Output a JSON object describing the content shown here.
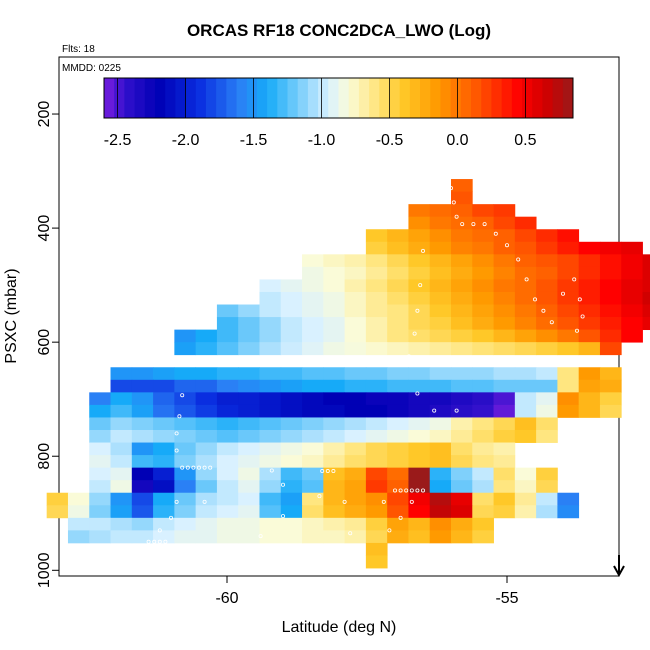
{
  "chart_data": {
    "type": "heatmap",
    "title": "ORCAS RF18 CONC2DCA_LWO (Log)",
    "subtitle_flts": "Flts: 18",
    "subtitle_mmdd": "MMDD: 0225",
    "xlabel": "Latitude (deg N)",
    "ylabel": "PSXC (mbar)",
    "xlim": [
      -63.0,
      -53.0
    ],
    "ylim": [
      1010,
      100
    ],
    "y_reversed": true,
    "x_ticks": [
      -60,
      -55
    ],
    "x_tick_labels": [
      "-60",
      "-55"
    ],
    "y_ticks": [
      200,
      400,
      600,
      800,
      1000
    ],
    "y_tick_labels": [
      "200",
      "400",
      "600",
      "800",
      "1000"
    ],
    "colorbar": {
      "range": [
        -2.6,
        0.85
      ],
      "ticks": [
        -2.5,
        -2.0,
        -1.5,
        -1.0,
        -0.5,
        0.0,
        0.5
      ],
      "tick_labels": [
        "-2.5",
        "-2.0",
        "-1.5",
        "-1.0",
        "-0.5",
        "0.0",
        "0.5"
      ],
      "stops": [
        {
          "v": -2.6,
          "c": "#7a1fe0"
        },
        {
          "v": -2.45,
          "c": "#3311cc"
        },
        {
          "v": -2.2,
          "c": "#0000b5"
        },
        {
          "v": -1.9,
          "c": "#0a2ee0"
        },
        {
          "v": -1.6,
          "c": "#2a80f5"
        },
        {
          "v": -1.4,
          "c": "#16aaf8"
        },
        {
          "v": -1.15,
          "c": "#7fd0fb"
        },
        {
          "v": -0.95,
          "c": "#d9f1ff"
        },
        {
          "v": -0.8,
          "c": "#fafbd8"
        },
        {
          "v": -0.6,
          "c": "#ffe680"
        },
        {
          "v": -0.4,
          "c": "#ffc828"
        },
        {
          "v": -0.15,
          "c": "#ff9a00"
        },
        {
          "v": 0.15,
          "c": "#ff5500"
        },
        {
          "v": 0.45,
          "c": "#ff0000"
        },
        {
          "v": 0.65,
          "c": "#d00000"
        },
        {
          "v": 0.85,
          "c": "#9a1a1a"
        }
      ]
    },
    "cell_size": {
      "dlat": 0.38,
      "dp": 22
    },
    "rows": [
      {
        "p": 325,
        "lat0": -56.0,
        "values": [
          0.1
        ]
      },
      {
        "p": 347,
        "lat0": -56.0,
        "values": [
          0.15
        ]
      },
      {
        "p": 369,
        "lat0": -56.76,
        "values": [
          0.0,
          0.05,
          0.1,
          0.2,
          0.25
        ]
      },
      {
        "p": 391,
        "lat0": -56.76,
        "values": [
          -0.1,
          0.0,
          0.05,
          0.1,
          0.2,
          0.3
        ]
      },
      {
        "p": 413,
        "lat0": -57.52,
        "values": [
          -0.4,
          -0.3,
          -0.2,
          -0.1,
          0.0,
          0.05,
          0.1,
          0.2,
          0.3,
          0.4
        ]
      },
      {
        "p": 435,
        "lat0": -57.52,
        "values": [
          -0.45,
          -0.35,
          -0.25,
          -0.15,
          -0.05,
          0.0,
          0.1,
          0.15,
          0.25,
          0.35,
          0.45,
          0.5,
          0.55
        ]
      },
      {
        "p": 457,
        "lat0": -58.66,
        "values": [
          -0.8,
          -0.75,
          -0.7,
          -0.6,
          -0.5,
          -0.4,
          -0.3,
          -0.2,
          -0.1,
          0.0,
          0.1,
          0.15,
          0.2,
          0.3,
          0.4,
          0.5,
          0.6
        ]
      },
      {
        "p": 479,
        "lat0": -58.66,
        "values": [
          -0.85,
          -0.8,
          -0.75,
          -0.65,
          -0.55,
          -0.45,
          -0.35,
          -0.25,
          -0.15,
          -0.05,
          0.05,
          0.1,
          0.2,
          0.3,
          0.4,
          0.5,
          0.6
        ]
      },
      {
        "p": 501,
        "lat0": -59.42,
        "values": [
          -0.95,
          -0.9,
          -0.85,
          -0.8,
          -0.7,
          -0.6,
          -0.5,
          -0.4,
          -0.3,
          -0.2,
          -0.1,
          0.0,
          0.05,
          0.15,
          0.25,
          0.35,
          0.45,
          0.55,
          0.6
        ]
      },
      {
        "p": 523,
        "lat0": -59.42,
        "values": [
          -1.0,
          -0.95,
          -0.9,
          -0.85,
          -0.75,
          -0.65,
          -0.55,
          -0.45,
          -0.35,
          -0.25,
          -0.15,
          -0.05,
          0.05,
          0.15,
          0.25,
          0.35,
          0.45,
          0.55,
          0.65
        ]
      },
      {
        "p": 545,
        "lat0": -60.18,
        "values": [
          -1.2,
          -1.1,
          -1.0,
          -0.95,
          -0.9,
          -0.85,
          -0.75,
          -0.65,
          -0.6,
          -0.5,
          -0.4,
          -0.3,
          -0.2,
          -0.1,
          0.0,
          0.1,
          0.2,
          0.3,
          0.4,
          0.5,
          0.6
        ]
      },
      {
        "p": 567,
        "lat0": -60.18,
        "values": [
          -1.3,
          -1.2,
          -1.1,
          -1.0,
          -0.95,
          -0.9,
          -0.8,
          -0.7,
          -0.6,
          -0.5,
          -0.45,
          -0.35,
          -0.25,
          -0.15,
          -0.05,
          0.05,
          0.15,
          0.25,
          0.35,
          0.45,
          0.55
        ]
      },
      {
        "p": 589,
        "lat0": -60.94,
        "values": [
          -1.5,
          -1.4,
          -1.3,
          -1.2,
          -1.1,
          -1.0,
          -0.95,
          -0.9,
          -0.8,
          -0.7,
          -0.6,
          -0.55,
          -0.5,
          -0.45,
          -0.4,
          -0.3,
          -0.2,
          -0.1,
          0.0,
          0.15,
          0.3,
          0.45
        ]
      },
      {
        "p": 611,
        "lat0": -60.94,
        "values": [
          -1.45,
          -1.35,
          -1.25,
          -1.15,
          -1.05,
          -0.98,
          -0.92,
          -0.85,
          -0.82,
          -0.78,
          -0.74,
          -0.7,
          -0.66,
          -0.62,
          -0.58,
          -0.54,
          -0.5,
          -0.45,
          -0.4,
          -0.3,
          0.2
        ]
      },
      {
        "p": 655,
        "lat0": -62.08,
        "values": [
          -1.5,
          -1.5,
          -1.45,
          -1.4,
          -1.4,
          -1.35,
          -1.35,
          -1.3,
          -1.3,
          -1.25,
          -1.25,
          -1.2,
          -1.2,
          -1.15,
          -1.15,
          -1.1,
          -1.1,
          -1.1,
          -1.05,
          -1.05,
          -1.0,
          -0.6,
          -0.15,
          -0.3
        ]
      },
      {
        "p": 677,
        "lat0": -62.08,
        "values": [
          -1.8,
          -1.8,
          -1.8,
          -1.7,
          -1.7,
          -1.6,
          -1.55,
          -1.5,
          -1.45,
          -1.4,
          -1.4,
          -1.35,
          -1.35,
          -1.3,
          -1.3,
          -1.3,
          -1.25,
          -1.25,
          -1.2,
          -1.2,
          -1.2,
          -0.6,
          -0.2,
          -0.25
        ]
      },
      {
        "p": 699,
        "lat0": -62.46,
        "values": [
          -1.6,
          -1.4,
          -1.5,
          -1.7,
          -1.8,
          -1.9,
          -2.0,
          -2.0,
          -2.05,
          -2.1,
          -2.15,
          -2.2,
          -2.2,
          -2.25,
          -2.25,
          -2.3,
          -2.3,
          -2.35,
          -2.4,
          -2.5,
          -1.0,
          -0.9,
          -0.1,
          -0.3,
          -0.45
        ]
      },
      {
        "p": 721,
        "lat0": -62.46,
        "values": [
          -1.4,
          -1.3,
          -1.45,
          -1.65,
          -1.75,
          -1.85,
          -1.95,
          -2.0,
          -2.05,
          -2.1,
          -2.15,
          -2.15,
          -2.2,
          -2.2,
          -2.25,
          -2.3,
          -2.35,
          -2.4,
          -2.45,
          -2.55,
          -1.0,
          -0.85,
          -0.15,
          -0.3,
          -0.5
        ]
      },
      {
        "p": 743,
        "lat0": -62.46,
        "values": [
          -1.2,
          -1.1,
          -1.15,
          -1.2,
          -1.25,
          -1.3,
          -1.35,
          -1.3,
          -1.25,
          -1.2,
          -1.15,
          -1.1,
          -1.05,
          -1.0,
          -0.95,
          -0.9,
          -0.85,
          -0.7,
          -0.6,
          -0.5,
          -0.35,
          -0.55
        ]
      },
      {
        "p": 765,
        "lat0": -62.46,
        "values": [
          -1.1,
          -1.0,
          -1.05,
          -1.1,
          -1.15,
          -1.2,
          -1.25,
          -1.2,
          -1.15,
          -1.1,
          -1.05,
          -1.0,
          -0.95,
          -0.9,
          -0.85,
          -0.8,
          -0.75,
          -0.65,
          -0.55,
          -0.45,
          -0.4,
          -0.6
        ]
      },
      {
        "p": 787,
        "lat0": -62.46,
        "values": [
          -0.95,
          -1.05,
          -1.5,
          -1.4,
          -1.2,
          -1.1,
          -1.0,
          -0.95,
          -0.9,
          -0.85,
          -0.8,
          -0.7,
          -0.6,
          -0.5,
          -0.45,
          -0.4,
          -0.35,
          -0.55,
          -0.65,
          -0.7
        ]
      },
      {
        "p": 809,
        "lat0": -62.46,
        "values": [
          -0.9,
          -1.0,
          -1.3,
          -1.35,
          -1.15,
          -1.05,
          -0.95,
          -0.9,
          -0.85,
          -0.8,
          -0.75,
          -0.65,
          -0.55,
          -0.5,
          -0.45,
          -0.4,
          -0.35,
          -0.5,
          -0.6,
          -0.65
        ]
      },
      {
        "p": 831,
        "lat0": -62.46,
        "values": [
          -0.95,
          -0.9,
          -2.2,
          -2.0,
          -1.5,
          -1.1,
          -0.95,
          -0.85,
          -1.05,
          -1.3,
          -1.2,
          -0.35,
          -0.25,
          0.2,
          0.05,
          0.85,
          -1.35,
          -1.15,
          -1.0,
          -0.55,
          -0.8,
          -0.45
        ]
      },
      {
        "p": 853,
        "lat0": -62.46,
        "values": [
          -1.0,
          -0.85,
          -2.3,
          -2.1,
          -1.6,
          -1.2,
          -1.0,
          -0.9,
          -1.1,
          -1.35,
          -1.25,
          -0.3,
          -0.2,
          0.25,
          0.1,
          0.85,
          -1.4,
          -1.2,
          -1.05,
          -0.6,
          -0.75,
          -0.5
        ]
      },
      {
        "p": 875,
        "lat0": -63.22,
        "values": [
          -0.45,
          -0.8,
          -1.1,
          -1.5,
          -1.8,
          -1.4,
          -1.2,
          -1.05,
          -1.0,
          -0.95,
          -1.3,
          -1.45,
          -0.6,
          -0.3,
          -0.2,
          -0.1,
          0.2,
          0.5,
          0.75,
          0.55,
          -0.55,
          -0.4,
          -0.65,
          -1.0,
          -1.6
        ]
      },
      {
        "p": 897,
        "lat0": -63.22,
        "values": [
          -0.5,
          -0.85,
          -1.15,
          -1.45,
          -1.75,
          -1.35,
          -1.15,
          -1.0,
          -0.95,
          -0.9,
          -1.25,
          -1.4,
          -0.55,
          -0.35,
          -0.25,
          -0.15,
          0.15,
          0.45,
          0.7,
          0.6,
          -0.5,
          -0.45,
          -0.7,
          -1.05,
          -1.55
        ]
      },
      {
        "p": 919,
        "lat0": -62.84,
        "values": [
          -1.0,
          -1.0,
          -1.05,
          -1.1,
          -1.0,
          -0.95,
          -0.9,
          -0.85,
          -0.85,
          -0.8,
          -0.8,
          -0.75,
          -0.7,
          -0.65,
          -0.45,
          -0.2,
          -0.3,
          -0.1,
          -0.25,
          -0.4
        ]
      },
      {
        "p": 941,
        "lat0": -62.84,
        "values": [
          -1.1,
          -1.05,
          -1.0,
          -1.0,
          -0.95,
          -0.9,
          -0.9,
          -0.85,
          -0.85,
          -0.8,
          -0.8,
          -0.75,
          -0.75,
          -0.7,
          -0.5,
          -0.25,
          -0.35,
          -0.15,
          -0.3,
          -0.45
        ]
      },
      {
        "p": 963,
        "lat0": -57.52,
        "values": [
          -0.35
        ]
      },
      {
        "p": 985,
        "lat0": -57.52,
        "values": [
          -0.4
        ]
      }
    ],
    "markers": [
      {
        "lat": -56.0,
        "p": 330
      },
      {
        "lat": -55.95,
        "p": 355
      },
      {
        "lat": -55.9,
        "p": 380
      },
      {
        "lat": -55.8,
        "p": 393
      },
      {
        "lat": -55.6,
        "p": 393
      },
      {
        "lat": -55.4,
        "p": 393
      },
      {
        "lat": -55.2,
        "p": 410
      },
      {
        "lat": -55.0,
        "p": 430
      },
      {
        "lat": -54.8,
        "p": 455
      },
      {
        "lat": -54.65,
        "p": 490
      },
      {
        "lat": -54.5,
        "p": 525
      },
      {
        "lat": -54.35,
        "p": 545
      },
      {
        "lat": -54.2,
        "p": 565
      },
      {
        "lat": -54.0,
        "p": 515
      },
      {
        "lat": -53.8,
        "p": 490
      },
      {
        "lat": -53.7,
        "p": 525
      },
      {
        "lat": -53.65,
        "p": 555
      },
      {
        "lat": -53.75,
        "p": 580
      },
      {
        "lat": -56.5,
        "p": 440
      },
      {
        "lat": -56.55,
        "p": 500
      },
      {
        "lat": -56.6,
        "p": 545
      },
      {
        "lat": -56.65,
        "p": 585
      },
      {
        "lat": -56.75,
        "p": 625
      },
      {
        "lat": -56.6,
        "p": 690
      },
      {
        "lat": -56.3,
        "p": 720
      },
      {
        "lat": -55.9,
        "p": 720
      },
      {
        "lat": -60.8,
        "p": 693
      },
      {
        "lat": -60.85,
        "p": 730
      },
      {
        "lat": -60.9,
        "p": 760
      },
      {
        "lat": -60.9,
        "p": 790
      },
      {
        "lat": -60.8,
        "p": 820
      },
      {
        "lat": -60.7,
        "p": 820
      },
      {
        "lat": -60.6,
        "p": 820
      },
      {
        "lat": -60.5,
        "p": 820
      },
      {
        "lat": -60.4,
        "p": 820
      },
      {
        "lat": -60.3,
        "p": 820
      },
      {
        "lat": -60.9,
        "p": 880
      },
      {
        "lat": -60.4,
        "p": 880
      },
      {
        "lat": -61.0,
        "p": 908
      },
      {
        "lat": -61.2,
        "p": 930
      },
      {
        "lat": -61.4,
        "p": 950
      },
      {
        "lat": -61.3,
        "p": 950
      },
      {
        "lat": -61.2,
        "p": 950
      },
      {
        "lat": -61.1,
        "p": 950
      },
      {
        "lat": -59.2,
        "p": 825
      },
      {
        "lat": -59.0,
        "p": 850
      },
      {
        "lat": -59.0,
        "p": 905
      },
      {
        "lat": -59.4,
        "p": 940
      },
      {
        "lat": -59.6,
        "p": 958
      },
      {
        "lat": -58.3,
        "p": 826
      },
      {
        "lat": -58.2,
        "p": 826
      },
      {
        "lat": -58.1,
        "p": 826
      },
      {
        "lat": -58.35,
        "p": 870
      },
      {
        "lat": -57.9,
        "p": 880
      },
      {
        "lat": -57.8,
        "p": 935
      },
      {
        "lat": -57.7,
        "p": 960
      },
      {
        "lat": -57.7,
        "p": 985
      },
      {
        "lat": -57.2,
        "p": 880
      },
      {
        "lat": -57.0,
        "p": 860
      },
      {
        "lat": -56.9,
        "p": 860
      },
      {
        "lat": -56.8,
        "p": 860
      },
      {
        "lat": -56.7,
        "p": 860
      },
      {
        "lat": -56.6,
        "p": 860
      },
      {
        "lat": -56.5,
        "p": 860
      },
      {
        "lat": -56.7,
        "p": 880
      },
      {
        "lat": -56.9,
        "p": 908
      },
      {
        "lat": -57.1,
        "p": 930
      }
    ],
    "arrow": {
      "lat": -53.0
    }
  }
}
